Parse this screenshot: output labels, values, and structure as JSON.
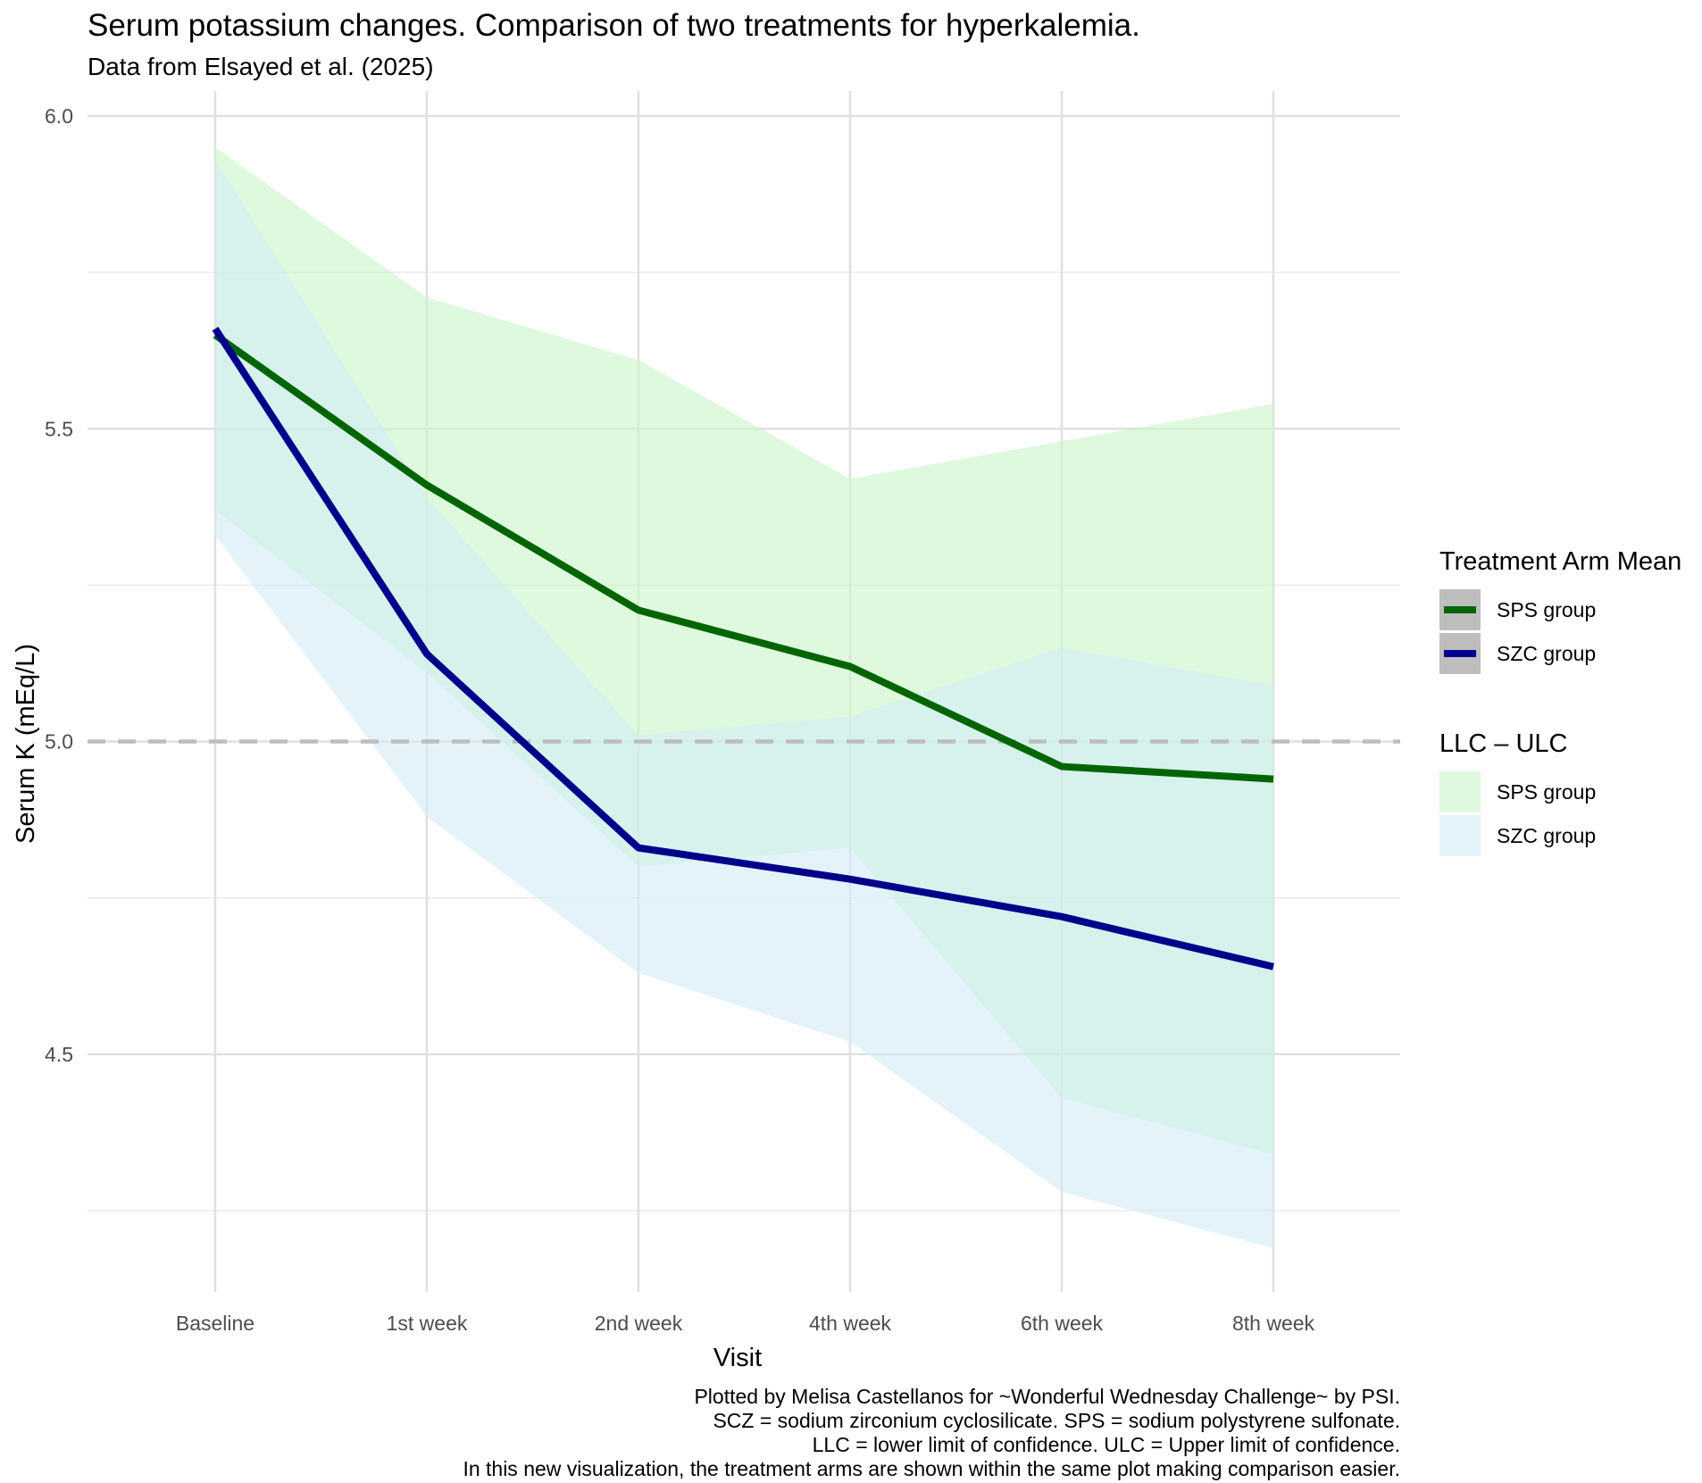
{
  "chart_data": {
    "type": "line",
    "title": "Serum potassium changes. Comparison of two treatments for hyperkalemia.",
    "subtitle": "Data from Elsayed et al. (2025)",
    "xlabel": "Visit",
    "ylabel": "Serum K (mEq/L)",
    "categories": [
      "Baseline",
      "1st week",
      "2nd week",
      "4th week",
      "6th week",
      "8th week"
    ],
    "ylim": [
      4.12,
      6.04
    ],
    "yticks": [
      4.5,
      5.0,
      5.5,
      6.0
    ],
    "ytick_labels": [
      "4.5",
      "5.0",
      "5.5",
      "6.0"
    ],
    "grid": true,
    "reference_line": {
      "y": 5.0,
      "style": "dashed",
      "color": "#bdbdbd"
    },
    "series": [
      {
        "name": "SPS group",
        "color": "#006400",
        "values": [
          5.65,
          5.41,
          5.21,
          5.12,
          4.96,
          4.94
        ]
      },
      {
        "name": "SZC group",
        "color": "#00008b",
        "values": [
          5.66,
          5.14,
          4.83,
          4.78,
          4.72,
          4.64
        ]
      }
    ],
    "bands": [
      {
        "name": "SPS group",
        "color": "#c9f5c9",
        "lower": [
          5.37,
          5.11,
          4.8,
          4.83,
          4.43,
          4.34
        ],
        "upper": [
          5.95,
          5.71,
          5.61,
          5.42,
          5.48,
          5.54
        ]
      },
      {
        "name": "SZC group",
        "color": "#d4ebf5",
        "lower": [
          5.33,
          4.88,
          4.63,
          4.52,
          4.28,
          4.19
        ],
        "upper": [
          5.93,
          5.39,
          5.01,
          5.04,
          5.15,
          5.09
        ]
      }
    ],
    "legend": {
      "placement": "right",
      "mean_title": "Treatment Arm Mean",
      "band_title": "LLC – ULC",
      "key_background": "#bebebe"
    },
    "caption_lines": [
      "Plotted by Melisa Castellanos for ~Wonderful Wednesday Challenge~ by PSI.",
      "SCZ = sodium zirconium cyclosilicate. SPS = sodium polystyrene sulfonate.",
      "LLC = lower limit of confidence. ULC = Upper limit of confidence. ",
      "In this new visualization, the treatment arms are shown within the same plot making comparison easier."
    ]
  }
}
